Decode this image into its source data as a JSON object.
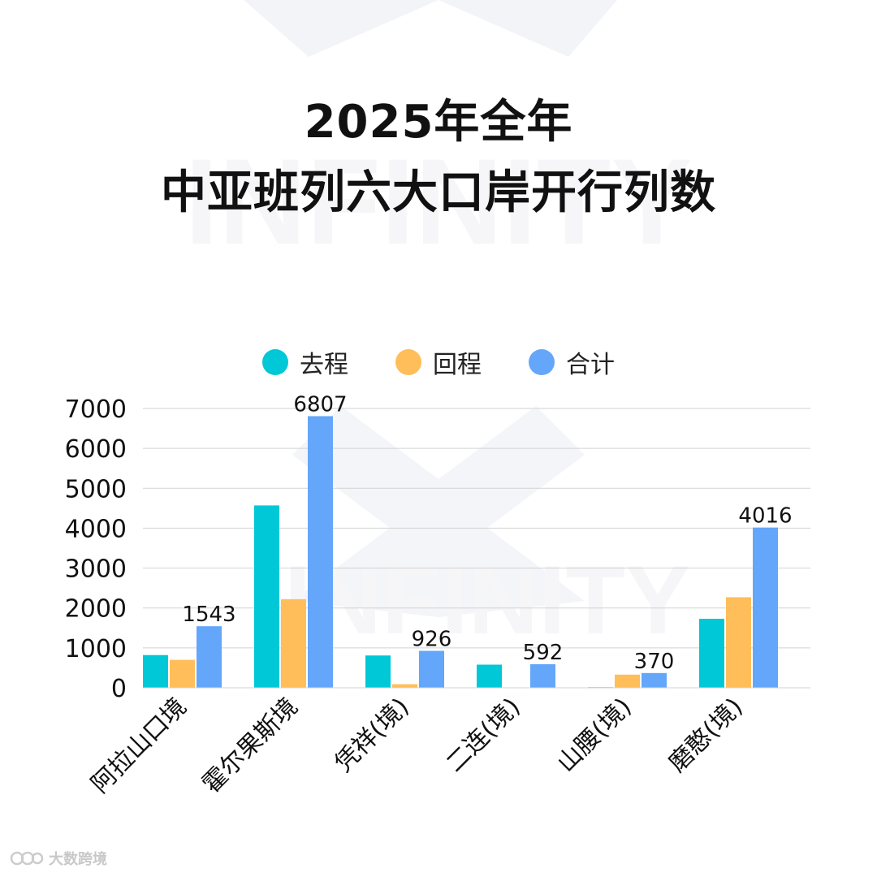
{
  "header": {
    "title_line1": "2025年全年",
    "title_line2": "中亚班列六大口岸开行列数"
  },
  "watermark": {
    "text": "INFINITY"
  },
  "brand": {
    "name": "大数跨境",
    "icon": "brand-logo-icon"
  },
  "colors": {
    "outbound": "#00C8D7",
    "return": "#FFBE5A",
    "total": "#64A6FA",
    "grid": "#D2D2D2",
    "text": "#111111"
  },
  "chart_data": {
    "type": "bar",
    "title": "2025年全年 中亚班列六大口岸开行列数",
    "categories": [
      "阿拉山口境",
      "霍尔果斯境",
      "凭祥(境)",
      "二连(境)",
      "山腰(境)",
      "磨憨(境)"
    ],
    "series": [
      {
        "name": "去程",
        "values": [
          820,
          4570,
          810,
          580,
          15,
          1730
        ]
      },
      {
        "name": "回程",
        "values": [
          700,
          2220,
          90,
          0,
          330,
          2270
        ]
      },
      {
        "name": "合计",
        "values": [
          1543,
          6807,
          926,
          592,
          370,
          4016
        ]
      }
    ],
    "data_labels": [
      "1543",
      "6807",
      "926",
      "592",
      "370",
      "4016"
    ],
    "yticks": [
      "0",
      "1000",
      "2000",
      "3000",
      "4000",
      "5000",
      "6000",
      "7000"
    ],
    "ylim": [
      0,
      7000
    ],
    "xlabel": "",
    "ylabel": "",
    "grid": true,
    "legend": "top-center"
  }
}
